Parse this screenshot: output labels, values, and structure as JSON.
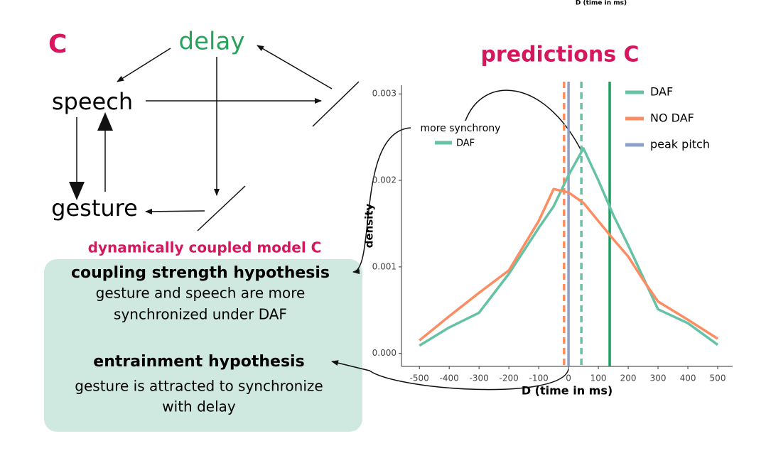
{
  "figure_label": "C",
  "top_cropped_text": "D (time in ms)",
  "diagram": {
    "nodes": [
      "delay",
      "speech",
      "gesture"
    ],
    "model_title": "dynamically coupled model C",
    "hypotheses": [
      {
        "title": "coupling strength hypothesis",
        "lines": [
          "gesture and speech are more",
          "synchronized under DAF"
        ]
      },
      {
        "title": "entrainment hypothesis",
        "lines": [
          "gesture is attracted to synchronize",
          "with delay"
        ]
      }
    ]
  },
  "chart_data": {
    "type": "line",
    "title": "predictions C",
    "x_label": "D (time in ms)",
    "y_label": "density",
    "annotation": "more synchrony",
    "x": [
      -500,
      -400,
      -300,
      -200,
      -100,
      -50,
      0,
      50,
      100,
      150,
      200,
      250,
      300,
      400,
      500
    ],
    "series": [
      {
        "name": "DAF",
        "color": "#66c2a5",
        "values": [
          9e-05,
          0.0003,
          0.00047,
          0.00092,
          0.00145,
          0.0017,
          0.00206,
          0.00237,
          0.002,
          0.0016,
          0.00125,
          0.00088,
          0.00051,
          0.00035,
          0.0001
        ]
      },
      {
        "name": "NO DAF",
        "color": "#fc8d62",
        "values": [
          0.00015,
          0.00043,
          0.0007,
          0.00096,
          0.00153,
          0.0019,
          0.00186,
          0.00174,
          0.00153,
          0.00132,
          0.00112,
          0.00085,
          0.0006,
          0.00039,
          0.00017
        ]
      }
    ],
    "reference_lines": [
      {
        "x": -15,
        "color": "#fc8d62",
        "dashed": true
      },
      {
        "name": "peak pitch",
        "x": 0,
        "color": "#8da0cb",
        "dashed": false
      },
      {
        "x": 43,
        "color": "#66c2a5",
        "dashed": true
      },
      {
        "x": 138,
        "color": "#1a9e5f",
        "dashed": false
      }
    ],
    "xlim": [
      -560,
      550
    ],
    "ylim": [
      -0.00015,
      0.0031
    ],
    "xticks": [
      -500,
      -400,
      -300,
      -200,
      -100,
      0,
      100,
      200,
      300,
      400,
      500
    ],
    "yticks": [
      {
        "value": 0,
        "label": "0.000"
      },
      0.001,
      0.002,
      0.003
    ]
  }
}
